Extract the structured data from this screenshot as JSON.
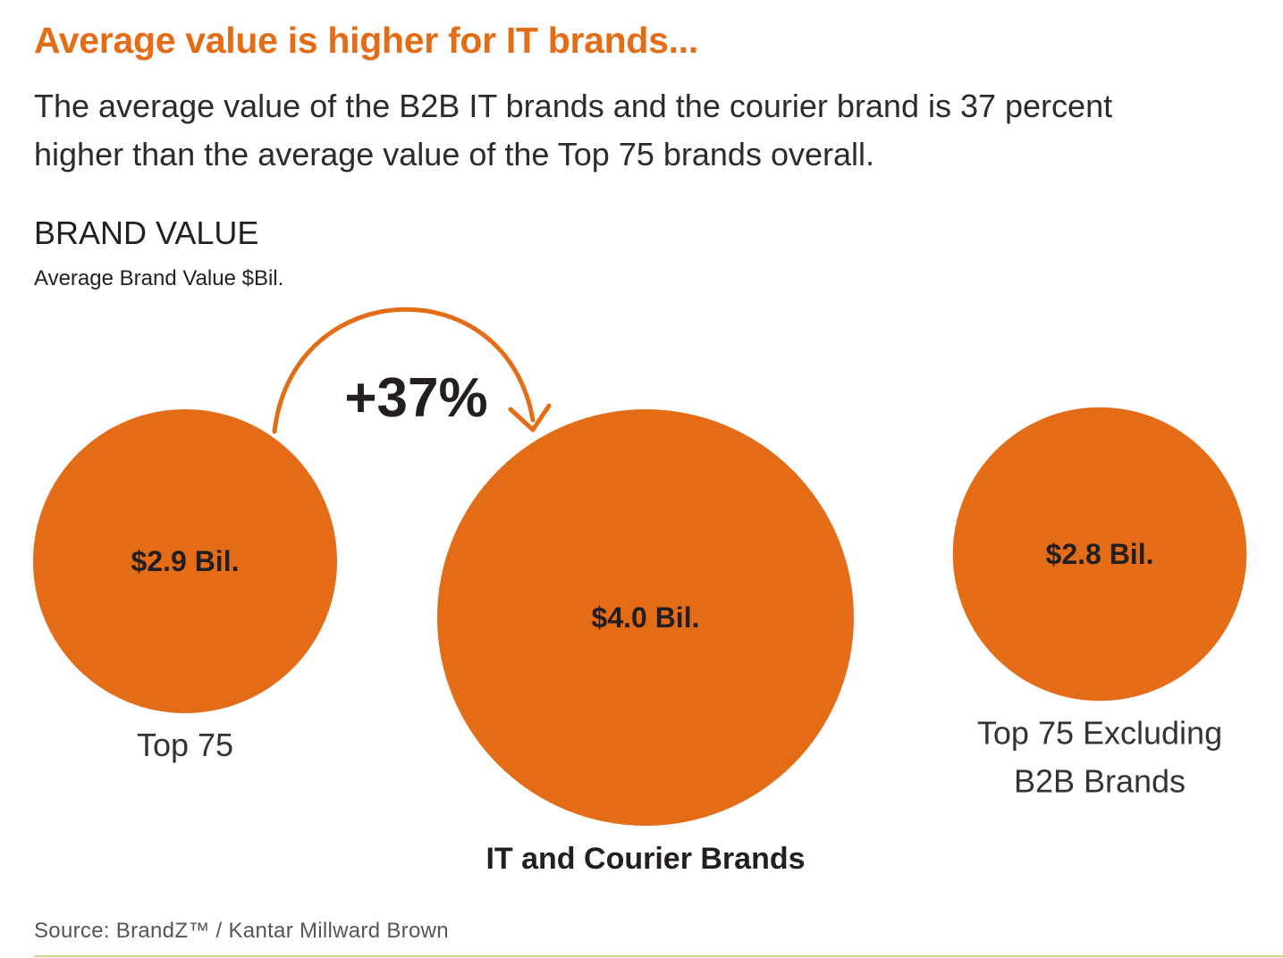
{
  "headline": "Average value is higher for IT brands...",
  "intro": "The average value of the B2B IT brands and the courier brand is 37 percent higher than the average value of the Top 75 brands overall.",
  "section_title": "BRAND VALUE",
  "subtitle": "Average Brand Value $Bil.",
  "source": "Source: BrandZ™ / Kantar Millward Brown",
  "colors": {
    "accent": "#e46c17",
    "text": "#231f20"
  },
  "chart_data": {
    "type": "bubble",
    "title": "BRAND VALUE",
    "subtitle": "Average Brand Value $Bil.",
    "unit": "$Bil.",
    "bubbles": [
      {
        "name": "Top 75",
        "value": 2.9,
        "value_label": "$2.9 Bil.",
        "category_lines": [
          "Top 75"
        ],
        "emphasis": false
      },
      {
        "name": "IT and Courier Brands",
        "value": 4.0,
        "value_label": "$4.0 Bil.",
        "category_lines": [
          "IT and Courier Brands"
        ],
        "emphasis": true
      },
      {
        "name": "Top 75 Excluding B2B Brands",
        "value": 2.8,
        "value_label": "$2.8 Bil.",
        "category_lines": [
          "Top 75 Excluding",
          "B2B Brands"
        ],
        "emphasis": false
      }
    ],
    "annotation": {
      "label": "+37%",
      "from": "Top 75",
      "to": "IT and Courier Brands"
    }
  }
}
